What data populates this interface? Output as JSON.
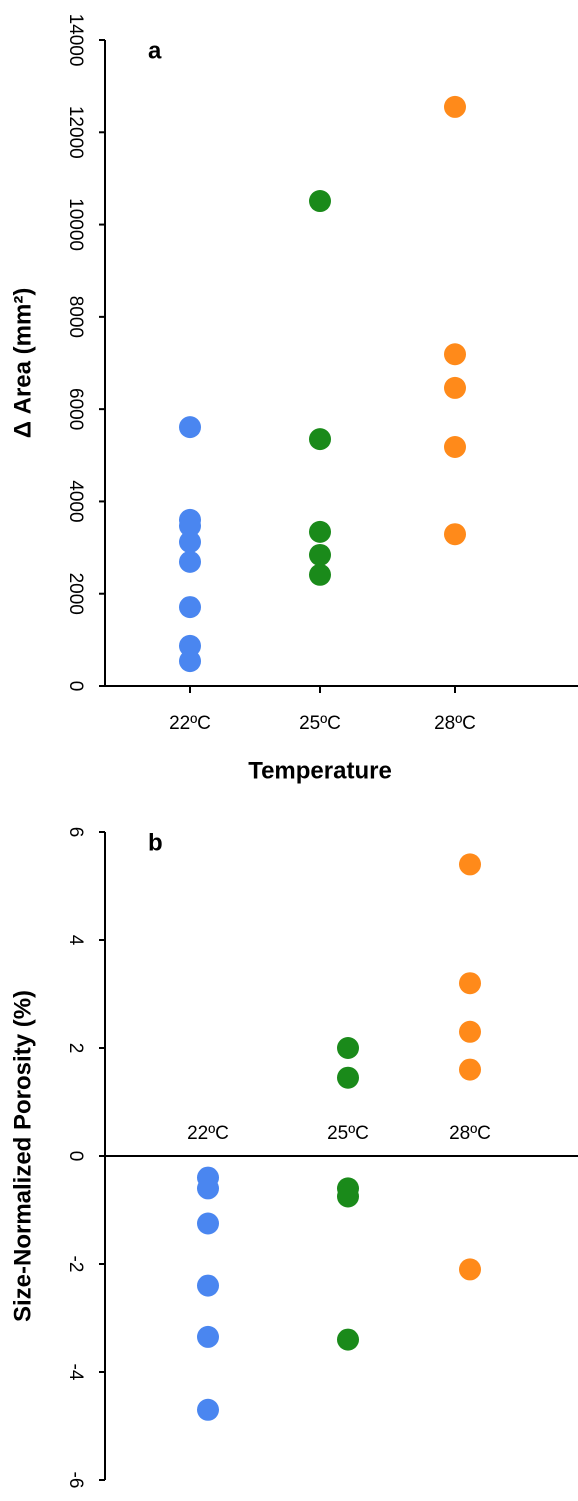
{
  "chart_data": [
    {
      "type": "strip",
      "label": "a",
      "ylabel": "Δ Area (mm²)",
      "xlabel": "Temperature",
      "categories": [
        "22ºC",
        "25ºC",
        "28ºC"
      ],
      "colors": [
        "#4a86f0",
        "#1a8a1a",
        "#ff8a1a"
      ],
      "values": [
        [
          5610,
          3600,
          3470,
          3120,
          2690,
          1710,
          870,
          540
        ],
        [
          10510,
          5350,
          3340,
          2840,
          2410
        ],
        [
          12550,
          7190,
          6460,
          5180,
          3290
        ]
      ],
      "ylim": [
        0,
        14000
      ],
      "yticks": [
        0,
        2000,
        4000,
        6000,
        8000,
        10000,
        12000,
        14000
      ]
    },
    {
      "type": "strip",
      "label": "b",
      "ylabel": "Size-Normalized Porosity (%)",
      "categories": [
        "22ºC",
        "25ºC",
        "28ºC"
      ],
      "colors": [
        "#4a86f0",
        "#1a8a1a",
        "#ff8a1a"
      ],
      "values": [
        [
          -0.4,
          -0.6,
          -1.25,
          -2.4,
          -3.35,
          -4.7
        ],
        [
          2.0,
          1.45,
          -0.6,
          -0.75,
          -3.4
        ],
        [
          5.4,
          3.2,
          2.3,
          1.6,
          -2.1
        ]
      ],
      "ylim": [
        -6,
        6
      ],
      "yticks": [
        -6,
        -4,
        -2,
        0,
        2,
        4,
        6
      ]
    }
  ]
}
